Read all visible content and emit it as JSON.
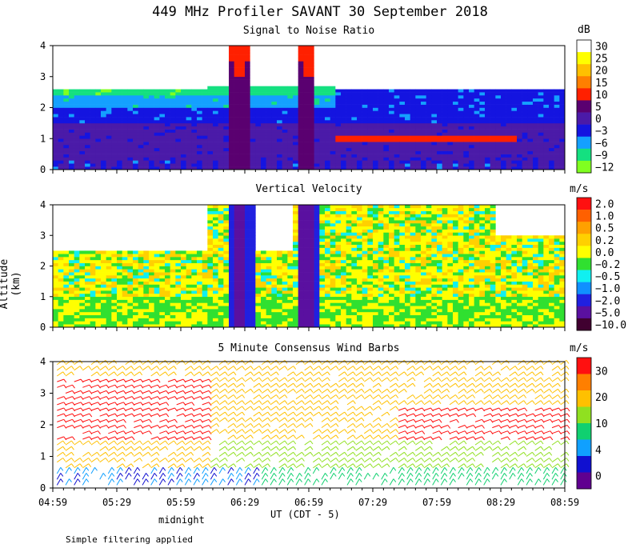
{
  "title": "449 MHz Profiler SAVANT 30 September 2018",
  "ylabel": "Altitude (km)",
  "xlabel": "UT  (CDT - 5)",
  "midnight_label": "midnight",
  "footer_note": "Simple filtering applied",
  "x_ticks": [
    "04:59",
    "05:29",
    "05:59",
    "06:29",
    "06:59",
    "07:29",
    "07:59",
    "08:29",
    "08:59"
  ],
  "y_ticks": [
    "0",
    "1",
    "2",
    "3",
    "4"
  ],
  "chart_data": [
    {
      "type": "heatmap",
      "title": "Signal to Noise Ratio",
      "unit": "dB",
      "xlim": [
        "04:59",
        "08:59"
      ],
      "ylim": [
        0,
        4
      ],
      "colorbar": {
        "labels": [
          "30",
          "25",
          "20",
          "15",
          "10",
          "5",
          "0",
          "−3",
          "−6",
          "−9",
          "−12"
        ],
        "colors": [
          "#ffffff",
          "#ffff00",
          "#ffc000",
          "#ff7f00",
          "#ff2000",
          "#5a0070",
          "#4b1aa8",
          "#1414e0",
          "#14a0ff",
          "#14e080",
          "#80ff20"
        ]
      }
    },
    {
      "type": "heatmap",
      "title": "Vertical Velocity",
      "unit": "m/s",
      "xlim": [
        "04:59",
        "08:59"
      ],
      "ylim": [
        0,
        4
      ],
      "colorbar": {
        "labels": [
          "2.0",
          "1.0",
          "0.5",
          "0.2",
          "0.0",
          "−0.2",
          "−0.5",
          "−1.0",
          "−2.0",
          "−5.0",
          "−10.0"
        ],
        "colors": [
          "#ff1010",
          "#ff6000",
          "#ffa000",
          "#ffd000",
          "#ffff00",
          "#30e030",
          "#10f0f0",
          "#1090ff",
          "#2020e0",
          "#5a10a0",
          "#400030"
        ]
      }
    },
    {
      "type": "scatter",
      "title": "5 Minute Consensus Wind Barbs",
      "unit": "m/s",
      "xlim": [
        "04:59",
        "08:59"
      ],
      "ylim": [
        0,
        4
      ],
      "colorbar": {
        "labels": [
          "30",
          "20",
          "10",
          "4",
          "0"
        ],
        "colors": [
          "#ff1010",
          "#ff7f00",
          "#ffc000",
          "#90e020",
          "#10d070",
          "#10a0ff",
          "#1010d0",
          "#600090"
        ]
      }
    }
  ]
}
